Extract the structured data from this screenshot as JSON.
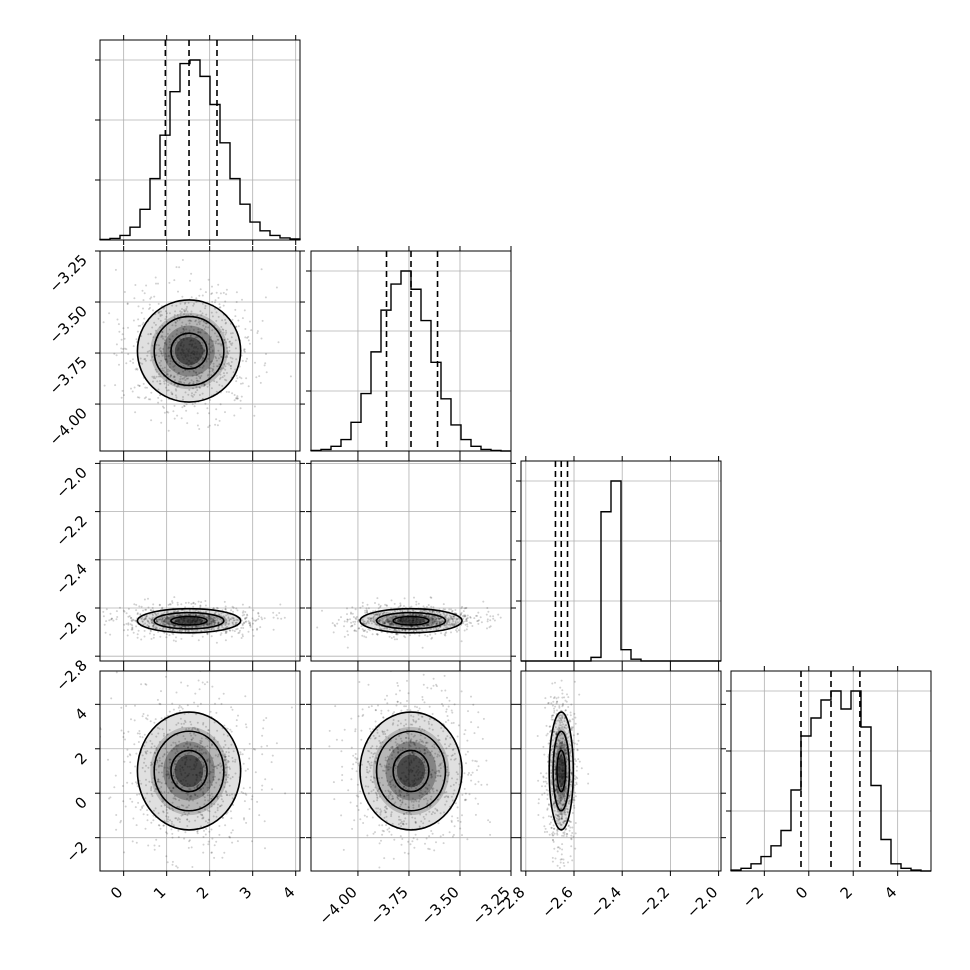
{
  "chart_data": {
    "type": "corner",
    "parameters": 4,
    "colors": {
      "line": "#000000",
      "grid": "#b0b0b0",
      "density": "#000000",
      "points": "#000000"
    },
    "grid": true,
    "dashed_quantiles": [
      [
        0.97,
        1.52,
        2.17
      ],
      [
        -3.86,
        -3.74,
        -3.61
      ],
      [
        -2.677,
        -2.653,
        -2.627
      ],
      [
        -0.35,
        1.0,
        2.3
      ]
    ],
    "ranges": [
      [
        -0.55,
        4.1
      ],
      [
        -4.23,
        -3.25
      ],
      [
        -2.82,
        -1.99
      ],
      [
        -3.5,
        5.5
      ]
    ],
    "x_ticks": [
      [
        "0",
        "1",
        "2",
        "3",
        "4"
      ],
      [
        "−4.00",
        "−3.75",
        "−3.50",
        "−3.25"
      ],
      [
        "−2.8",
        "−2.6",
        "−2.4",
        "−2.2",
        "−2.0"
      ],
      [
        "−2",
        "0",
        "2",
        "4"
      ]
    ],
    "y_ticks": [
      [],
      [
        "−3.25",
        "−3.50",
        "−3.75",
        "−4.00"
      ],
      [
        "−2.0",
        "−2.2",
        "−2.4",
        "−2.6",
        "−2.8"
      ],
      [
        "4",
        "2",
        "0",
        "−2"
      ]
    ],
    "histograms": [
      {
        "edges": [
          -0.55,
          4.1
        ],
        "values": [
          1,
          3,
          9,
          25,
          60,
          120,
          205,
          290,
          345,
          352,
          320,
          265,
          190,
          120,
          70,
          35,
          18,
          9,
          4,
          2
        ]
      },
      {
        "edges": [
          -4.23,
          -3.25
        ],
        "values": [
          1,
          3,
          9,
          22,
          55,
          110,
          190,
          270,
          320,
          345,
          310,
          250,
          170,
          100,
          50,
          22,
          9,
          3,
          1,
          0
        ]
      },
      {
        "edges": [
          -2.82,
          -1.99
        ],
        "values": [
          0,
          0,
          0,
          0,
          0,
          0,
          0,
          8,
          330,
          398,
          25,
          4,
          0,
          0,
          0,
          0,
          0,
          0,
          0,
          0
        ]
      },
      {
        "edges": [
          -3.5,
          5.5
        ],
        "values": [
          1,
          3,
          8,
          16,
          28,
          45,
          90,
          150,
          170,
          190,
          200,
          180,
          200,
          160,
          95,
          35,
          8,
          3,
          1,
          0
        ]
      }
    ]
  }
}
